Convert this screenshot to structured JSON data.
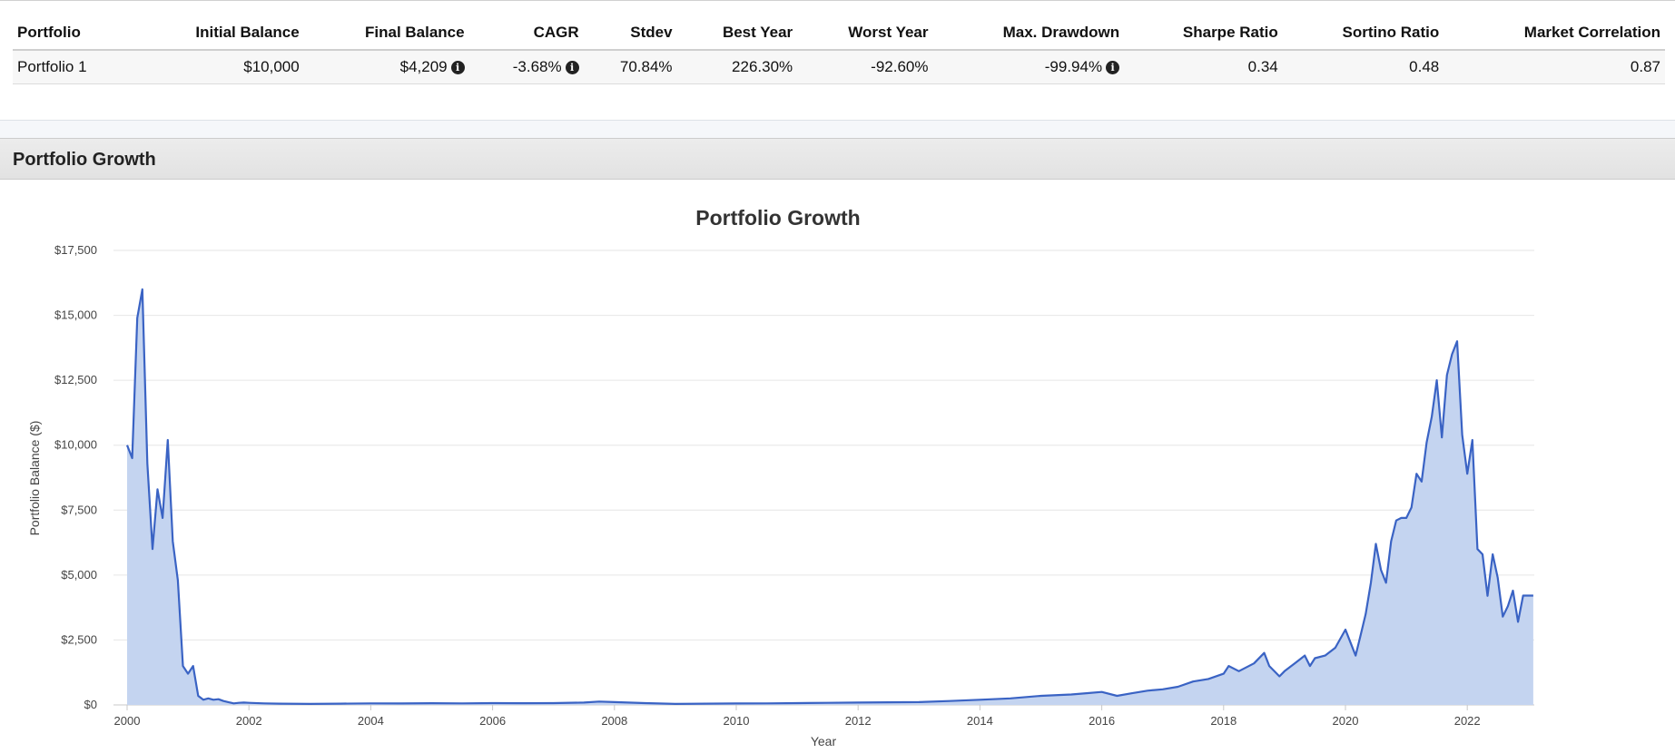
{
  "summary": {
    "headers": [
      "Portfolio",
      "Initial Balance",
      "Final Balance",
      "CAGR",
      "Stdev",
      "Best Year",
      "Worst Year",
      "Max. Drawdown",
      "Sharpe Ratio",
      "Sortino Ratio",
      "Market Correlation"
    ],
    "row": {
      "portfolio": "Portfolio 1",
      "initial_balance": "$10,000",
      "final_balance": "$4,209",
      "cagr": "-3.68%",
      "stdev": "70.84%",
      "best_year": "226.30%",
      "worst_year": "-92.60%",
      "max_drawdown": "-99.94%",
      "sharpe_ratio": "0.34",
      "sortino_ratio": "0.48",
      "market_correlation": "0.87"
    },
    "info_icon": "info-icon",
    "info_glyph": "i"
  },
  "section": {
    "title": "Portfolio Growth"
  },
  "chart_data": {
    "type": "area",
    "title": "Portfolio Growth",
    "xlabel": "Year",
    "ylabel": "Portfolio Balance ($)",
    "xlim": [
      2000,
      2023.1
    ],
    "ylim": [
      0,
      17500
    ],
    "x_ticks": [
      "2000",
      "2002",
      "2004",
      "2006",
      "2008",
      "2010",
      "2012",
      "2014",
      "2016",
      "2018",
      "2020",
      "2022"
    ],
    "y_ticks": [
      "$0",
      "$2,500",
      "$5,000",
      "$7,500",
      "$10,000",
      "$12,500",
      "$15,000",
      "$17,500"
    ],
    "grid": true,
    "line_color": "#3a63c4",
    "fill_color": "#c4d4f0",
    "series": [
      {
        "x": [
          2000,
          2000.083,
          2000.167,
          2000.25,
          2000.333,
          2000.417,
          2000.5,
          2000.583,
          2000.667,
          2000.75,
          2000.833,
          2000.917,
          2001.0,
          2001.083,
          2001.167,
          2001.25,
          2001.333,
          2001.417,
          2001.5,
          2001.583,
          2001.667,
          2001.75,
          2001.833,
          2001.917,
          2002.0,
          2002.25,
          2002.5,
          2003.0,
          2003.5,
          2004.0,
          2004.5,
          2005.0,
          2005.5,
          2006.0,
          2006.5,
          2007.0,
          2007.5,
          2007.75,
          2008.0,
          2008.5,
          2009.0,
          2009.5,
          2010.0,
          2010.5,
          2011.0,
          2011.5,
          2012.0,
          2012.5,
          2013.0,
          2013.5,
          2014.0,
          2014.5,
          2015.0,
          2015.5,
          2015.75,
          2016.0,
          2016.25,
          2016.5,
          2016.75,
          2017.0,
          2017.25,
          2017.5,
          2017.75,
          2018.0,
          2018.083,
          2018.25,
          2018.5,
          2018.667,
          2018.75,
          2018.917,
          2019.0,
          2019.167,
          2019.333,
          2019.417,
          2019.5,
          2019.667,
          2019.833,
          2020.0,
          2020.083,
          2020.167,
          2020.25,
          2020.333,
          2020.417,
          2020.5,
          2020.583,
          2020.667,
          2020.75,
          2020.833,
          2020.917,
          2021.0,
          2021.083,
          2021.167,
          2021.25,
          2021.333,
          2021.417,
          2021.5,
          2021.583,
          2021.667,
          2021.75,
          2021.833,
          2021.917,
          2022.0,
          2022.083,
          2022.167,
          2022.25,
          2022.333,
          2022.417,
          2022.5,
          2022.583,
          2022.667,
          2022.75,
          2022.833,
          2022.917,
          2023.0,
          2023.083
        ],
        "values": [
          10000,
          9500,
          14900,
          16000,
          9300,
          6000,
          8300,
          7200,
          10200,
          6300,
          4800,
          1500,
          1200,
          1500,
          350,
          200,
          250,
          200,
          220,
          150,
          100,
          60,
          80,
          90,
          80,
          60,
          50,
          40,
          50,
          60,
          55,
          65,
          60,
          70,
          65,
          70,
          90,
          130,
          110,
          70,
          40,
          50,
          55,
          60,
          70,
          80,
          90,
          100,
          110,
          150,
          200,
          250,
          350,
          400,
          450,
          500,
          350,
          450,
          550,
          600,
          700,
          900,
          1000,
          1200,
          1500,
          1300,
          1600,
          2000,
          1500,
          1100,
          1300,
          1600,
          1900,
          1500,
          1800,
          1900,
          2200,
          2900,
          2400,
          1900,
          2700,
          3500,
          4700,
          6200,
          5200,
          4700,
          6300,
          7100,
          7200,
          7200,
          7600,
          8900,
          8600,
          10100,
          11100,
          12500,
          10300,
          12700,
          13500,
          14000,
          10400,
          8900,
          10200,
          6000,
          5800,
          4200,
          5800,
          4900,
          3400,
          3800,
          4400,
          3200,
          4209,
          4209,
          4209
        ]
      }
    ]
  }
}
